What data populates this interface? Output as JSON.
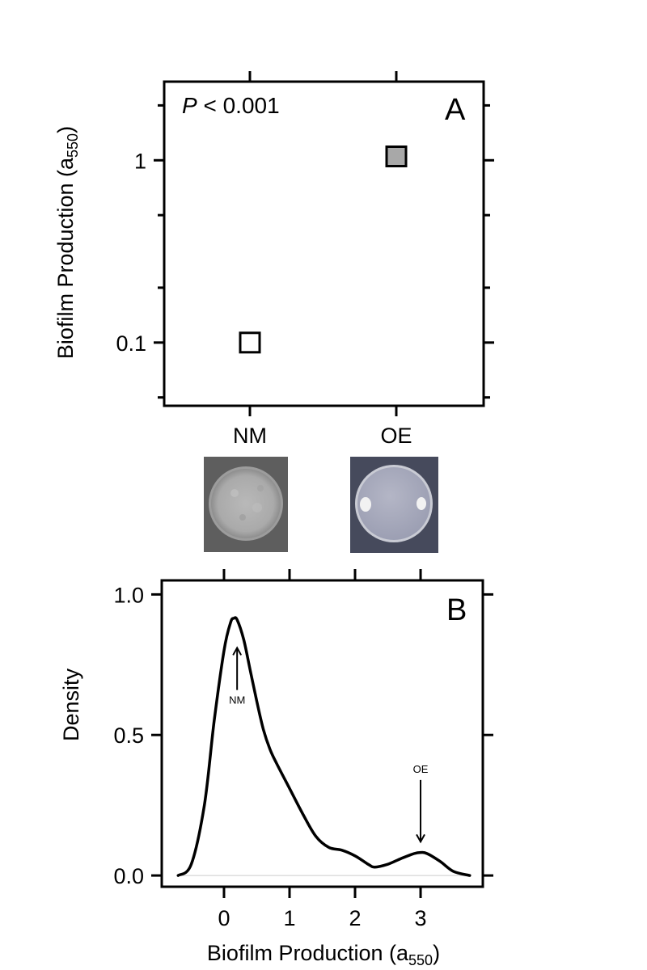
{
  "chart_data": [
    {
      "panel": "A",
      "type": "scatter",
      "panel_label": "A",
      "annotation": {
        "italic": "P",
        "rest": " < 0.001"
      },
      "ylabel": {
        "main": "Biofilm Production (a",
        "sub": "550",
        "close": ")"
      },
      "y_scale": "log",
      "ylim": [
        0.045,
        2.7
      ],
      "y_ticks": [
        {
          "value": 0.1,
          "label": "0.1"
        },
        {
          "value": 1,
          "label": "1"
        }
      ],
      "y_minor_ticks": [
        0.05,
        0.2,
        0.5,
        2
      ],
      "categories": [
        "NM",
        "OE"
      ],
      "points": [
        {
          "category": "NM",
          "y": 0.1,
          "fill": "#ffffff"
        },
        {
          "category": "OE",
          "y": 1.05,
          "fill": "#a8a8a8"
        }
      ]
    },
    {
      "panel": "B",
      "type": "line",
      "panel_label": "B",
      "xlabel": {
        "main": "Biofilm Production (a",
        "sub": "550",
        "close": ")"
      },
      "ylabel": "Density",
      "xlim": [
        -0.95,
        3.95
      ],
      "ylim": [
        -0.04,
        1.05
      ],
      "x_ticks": [
        {
          "value": 0,
          "label": "0"
        },
        {
          "value": 1,
          "label": "1"
        },
        {
          "value": 2,
          "label": "2"
        },
        {
          "value": 3,
          "label": "3"
        }
      ],
      "y_ticks": [
        {
          "value": 0,
          "label": "0.0"
        },
        {
          "value": 0.5,
          "label": "0.5"
        },
        {
          "value": 1,
          "label": "1.0"
        }
      ],
      "series": [
        {
          "x": [
            -0.7,
            -0.5,
            -0.3,
            -0.15,
            0,
            0.1,
            0.15,
            0.2,
            0.3,
            0.4,
            0.5,
            0.6,
            0.7,
            0.8,
            1.0,
            1.2,
            1.4,
            1.6,
            1.8,
            2.0,
            2.2,
            2.3,
            2.5,
            2.7,
            2.9,
            3.0,
            3.1,
            3.3,
            3.5,
            3.75
          ],
          "y": [
            0.0,
            0.04,
            0.25,
            0.55,
            0.8,
            0.9,
            0.915,
            0.91,
            0.84,
            0.73,
            0.62,
            0.52,
            0.45,
            0.4,
            0.31,
            0.22,
            0.14,
            0.1,
            0.09,
            0.07,
            0.04,
            0.03,
            0.04,
            0.06,
            0.078,
            0.082,
            0.078,
            0.05,
            0.015,
            0.0
          ]
        }
      ],
      "annotations": [
        {
          "text": "NM",
          "x": 0.2,
          "arrow_from_y": 0.66,
          "arrow_to_y": 0.81
        },
        {
          "text": "OE",
          "x": 3.0,
          "arrow_from_y": 0.34,
          "arrow_to_y": 0.12
        }
      ]
    }
  ]
}
